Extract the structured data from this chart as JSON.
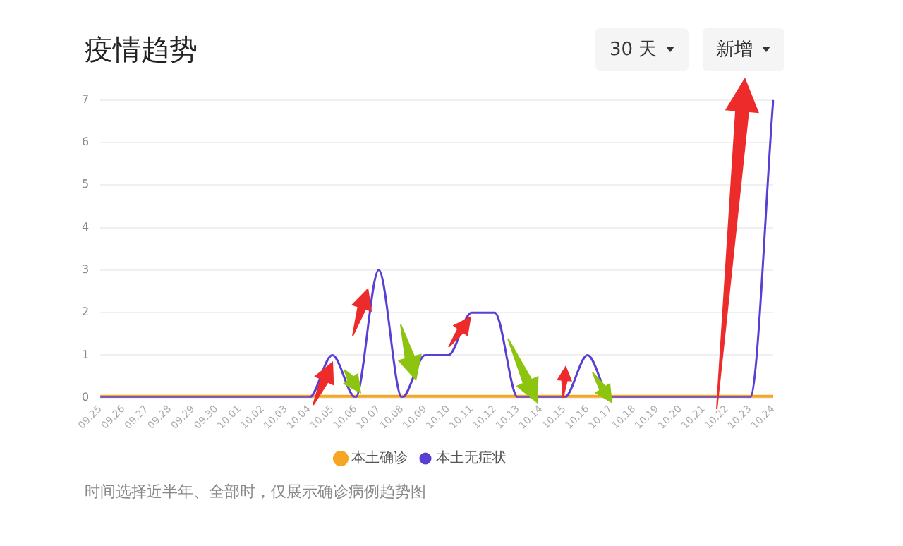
{
  "chart_data": {
    "type": "line",
    "title": "疫情趋势",
    "annotations": [
      "30 天",
      "新增",
      "时间选择近半年、全部时，仅展示确诊病例趋势图"
    ],
    "categories": [
      "09.25",
      "09.26",
      "09.27",
      "09.28",
      "09.29",
      "09.30",
      "10.01",
      "10.02",
      "10.03",
      "10.04",
      "10.05",
      "10.06",
      "10.07",
      "10.08",
      "10.09",
      "10.10",
      "10.11",
      "10.12",
      "10.13",
      "10.14",
      "10.15",
      "10.16",
      "10.17",
      "10.18",
      "10.19",
      "10.20",
      "10.21",
      "10.22",
      "10.23",
      "10.24"
    ],
    "series": [
      {
        "name": "本土确诊",
        "color": "#f5a623",
        "values": [
          0,
          0,
          0,
          0,
          0,
          0,
          0,
          0,
          0,
          0,
          0,
          0,
          0,
          0,
          0,
          0,
          0,
          0,
          0,
          0,
          0,
          0,
          0,
          0,
          0,
          0,
          0,
          0,
          0,
          0
        ]
      },
      {
        "name": "本土无症状",
        "color": "#5b3fd4",
        "values": [
          0,
          0,
          0,
          0,
          0,
          0,
          0,
          0,
          0,
          0,
          1,
          0,
          3,
          0,
          1,
          1,
          2,
          2,
          0,
          0,
          0,
          1,
          0,
          0,
          0,
          0,
          0,
          0,
          0,
          7
        ]
      }
    ],
    "ylim": [
      0,
      7
    ],
    "yticks": [
      0,
      1,
      2,
      3,
      4,
      5,
      6,
      7
    ],
    "grid": "y",
    "legend": "bottom",
    "marker": "none"
  }
}
